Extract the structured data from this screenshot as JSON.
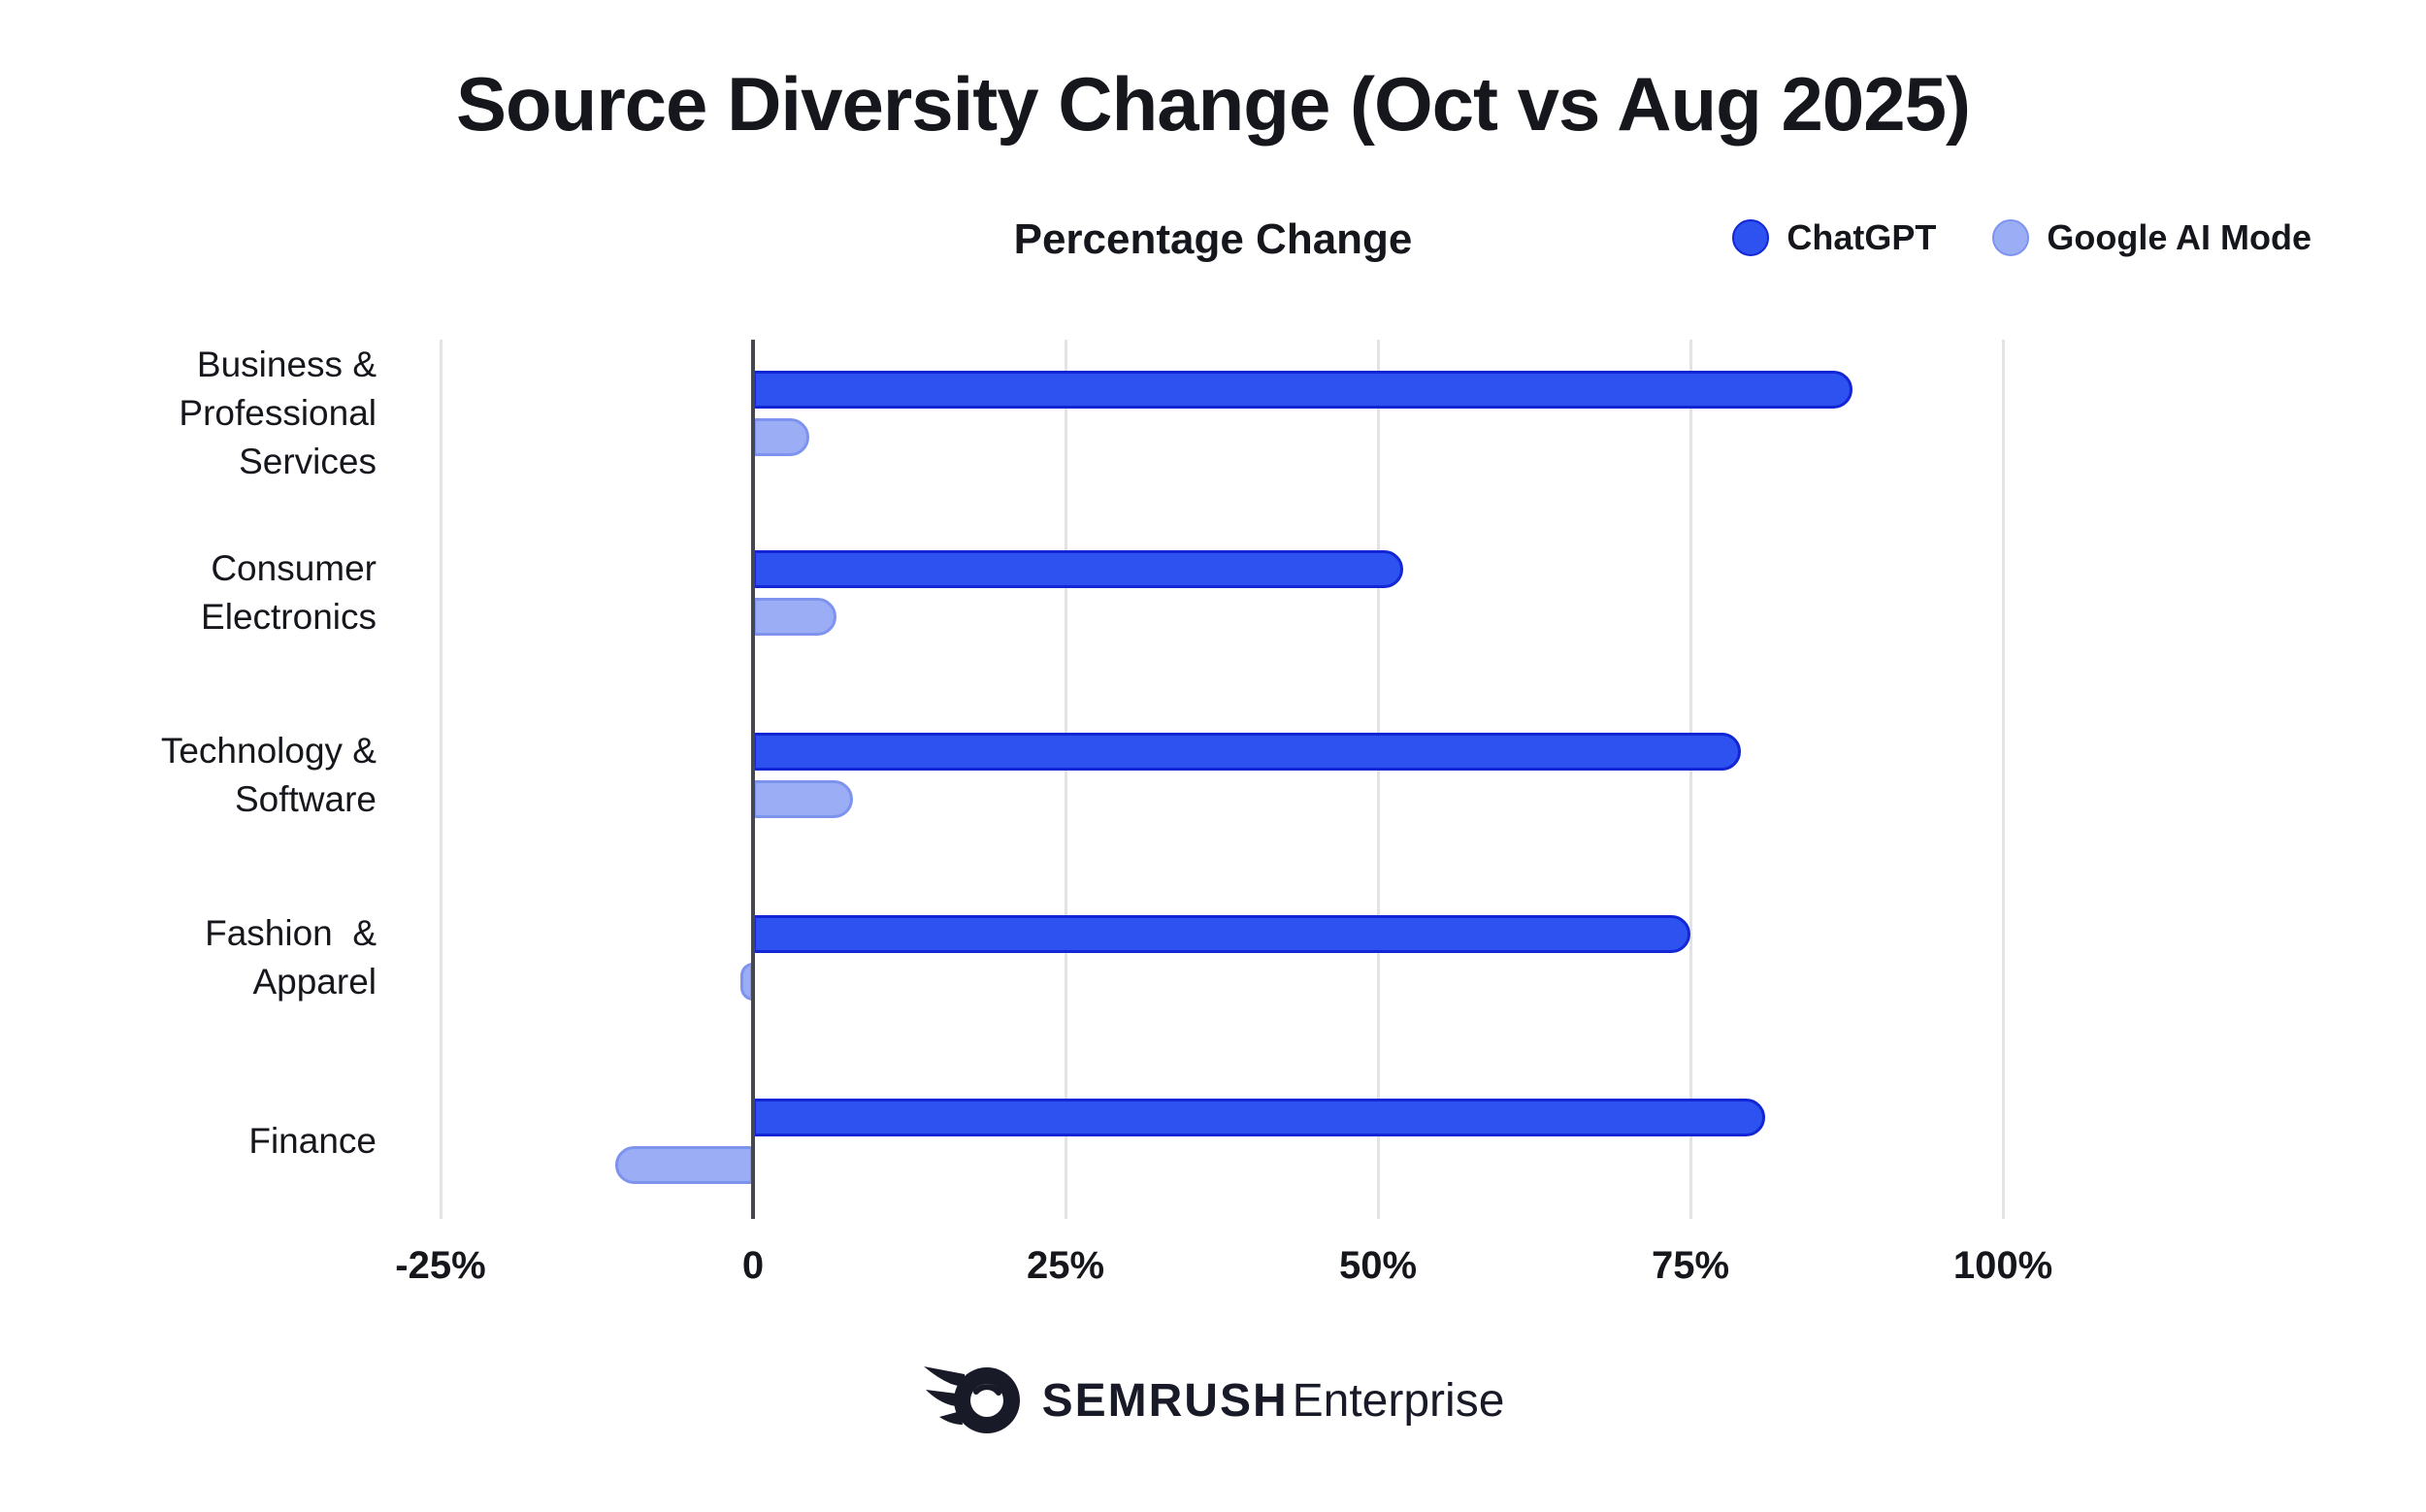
{
  "title": "Source Diversity Change (Oct vs Aug 2025)",
  "subtitle": "Percentage Change",
  "legend": [
    {
      "label": "ChatGPT",
      "color": "#2d52f0",
      "border": "#1226d6"
    },
    {
      "label": "Google AI Mode",
      "color": "#9aadf5",
      "border": "#7e93ee"
    }
  ],
  "footer": {
    "brand": "SEMRUSH",
    "suffix": "Enterprise",
    "color": "#191a27",
    "icon": "semrush-logo-icon"
  },
  "colors": {
    "chatgpt_fill": "#2d52f0",
    "chatgpt_border": "#1226d6",
    "google_fill": "#9aadf5",
    "google_border": "#7e93ee",
    "gridline": "#e3e3e6",
    "zero_axis": "#47474f",
    "text": "#15171c"
  },
  "chart_data": {
    "type": "bar",
    "orientation": "horizontal",
    "title": "Source Diversity Change (Oct vs Aug 2025)",
    "xlabel": "Percentage Change",
    "categories": [
      "Business &\nProfessional\nServices",
      "Consumer\nElectronics",
      "Technology &\nSoftware",
      "Fashion  &\nApparel",
      "Finance"
    ],
    "series": [
      {
        "name": "ChatGPT",
        "color": "#2d52f0",
        "border": "#1226d6",
        "values": [
          88,
          52,
          79,
          75,
          81
        ]
      },
      {
        "name": "Google AI Mode",
        "color": "#9aadf5",
        "border": "#7e93ee",
        "values": [
          4.5,
          6.7,
          8,
          -1,
          -11
        ]
      }
    ],
    "x_ticks": [
      {
        "v": -25,
        "label": "-25%"
      },
      {
        "v": 0,
        "label": "0"
      },
      {
        "v": 25,
        "label": "25%"
      },
      {
        "v": 50,
        "label": "50%"
      },
      {
        "v": 75,
        "label": "75%"
      },
      {
        "v": 100,
        "label": "100%"
      }
    ],
    "xlim": [
      -27.5,
      111.5
    ],
    "grid": true,
    "legend_position": "top-right",
    "unit": "%"
  }
}
